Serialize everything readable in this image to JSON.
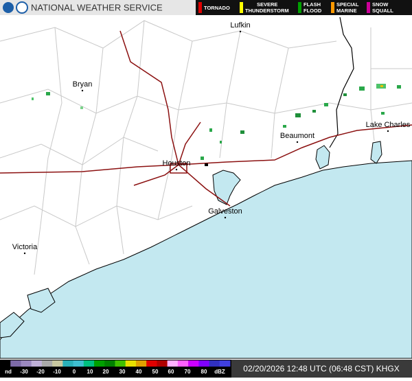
{
  "header": {
    "title": "NATIONAL WEATHER SERVICE"
  },
  "warnings": [
    "TORNADO",
    "SEVERE THUNDERSTORM",
    "FLASH FLOOD",
    "SPECIAL MARINE",
    "SNOW SQUALL"
  ],
  "cities": [
    "Lufkin",
    "Bryan",
    "Beaumont",
    "Lake Charles",
    "Houston",
    "Galveston",
    "Victoria"
  ],
  "scale": {
    "labels": [
      "nd",
      "-30",
      "-20",
      "-10",
      "0",
      "10",
      "20",
      "30",
      "40",
      "50",
      "60",
      "70",
      "80",
      "dBZ"
    ]
  },
  "footer": {
    "timestamp": "02/20/2026 12:48 UTC (06:48 CST) KHGX"
  }
}
